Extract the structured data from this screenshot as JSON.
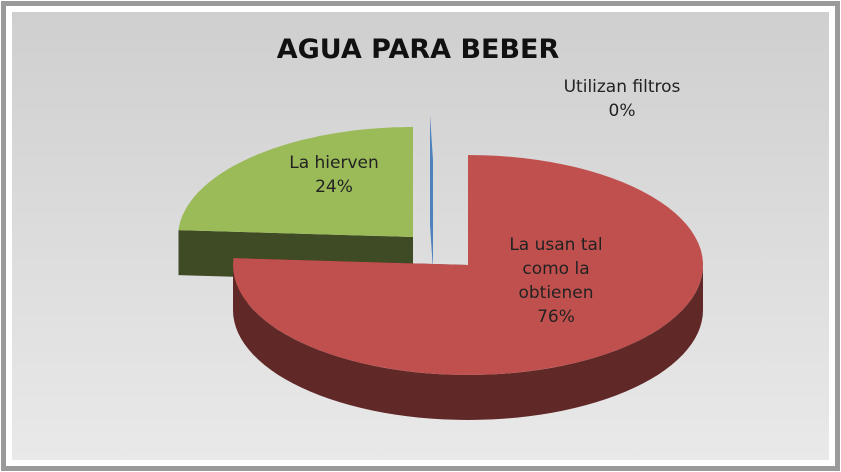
{
  "chart_data": {
    "type": "pie3d",
    "title": "AGUA PARA BEBER",
    "categories": [
      "La usan tal como la obtienen",
      "La hierven",
      "Utilizan filtros"
    ],
    "values": [
      76,
      24,
      0
    ],
    "value_labels": [
      "76%",
      "24%",
      "0%"
    ],
    "colors": [
      "#c0504d",
      "#9bbb59",
      "#4f81bd"
    ]
  }
}
